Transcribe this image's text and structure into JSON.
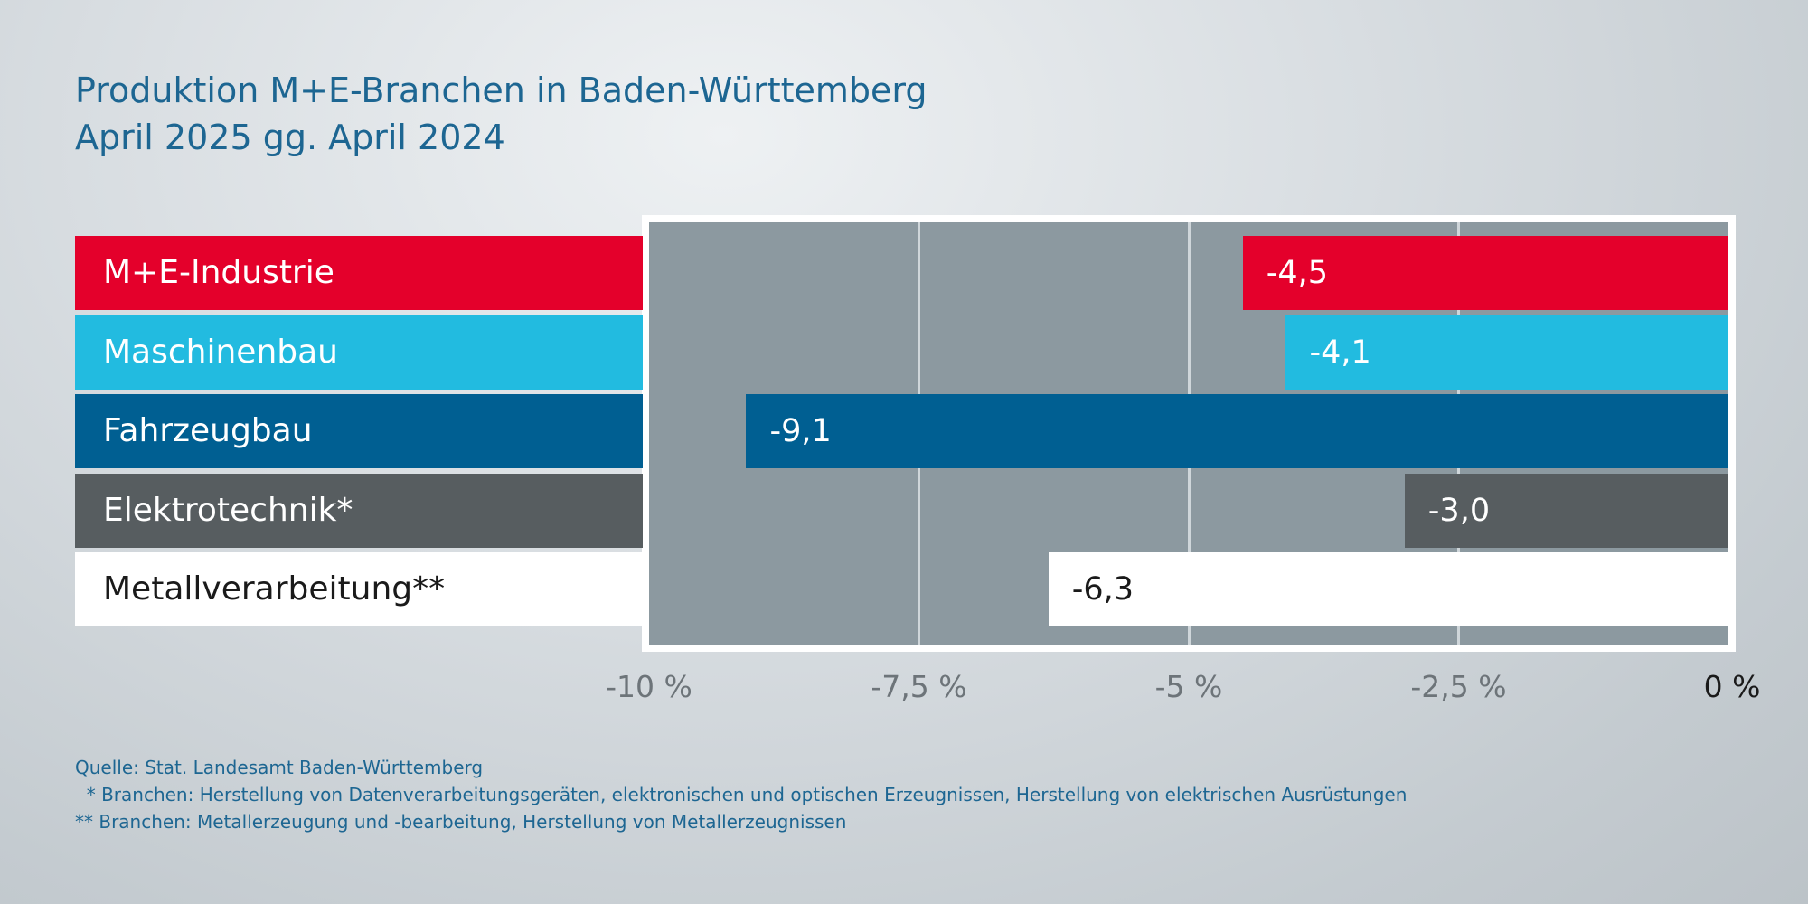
{
  "chart_data": {
    "type": "bar",
    "orientation": "horizontal",
    "title": "Produktion M+E-Branchen in Baden-Württemberg",
    "subtitle": "April 2025 gg. April 2024",
    "categories": [
      "M+E-Industrie",
      "Maschinenbau",
      "Fahrzeugbau",
      "Elektrotechnik*",
      "Metallverarbeitung**"
    ],
    "values": [
      -4.5,
      -4.1,
      -9.1,
      -3.0,
      -6.3
    ],
    "value_labels": [
      "-4,5",
      "-4,1",
      "-9,1",
      "-3,0",
      "-6,3"
    ],
    "colors": [
      "#e4002b",
      "#22bbe0",
      "#005f92",
      "#575d60",
      "#ffffff"
    ],
    "text_colors": [
      "#ffffff",
      "#ffffff",
      "#ffffff",
      "#ffffff",
      "#1a1a1a"
    ],
    "xlim": [
      -10,
      0
    ],
    "ticks": [
      -10,
      -7.5,
      -5,
      -2.5,
      0
    ],
    "tick_labels": [
      "-10 %",
      "-7,5 %",
      "-5 %",
      "-2,5 %",
      "0 %"
    ],
    "grid": true,
    "xlabel": "",
    "ylabel": ""
  },
  "notes": {
    "source": "Quelle: Stat. Landesamt Baden-Württemberg",
    "footnote1": "  * Branchen: Herstellung von Datenverarbeitungsgeräten, elektronischen und optischen Erzeugnissen, Herstellung von elektrischen Ausrüstungen",
    "footnote2": "** Branchen: Metallerzeugung und -bearbeitung, Herstellung von Metallerzeugnissen"
  }
}
